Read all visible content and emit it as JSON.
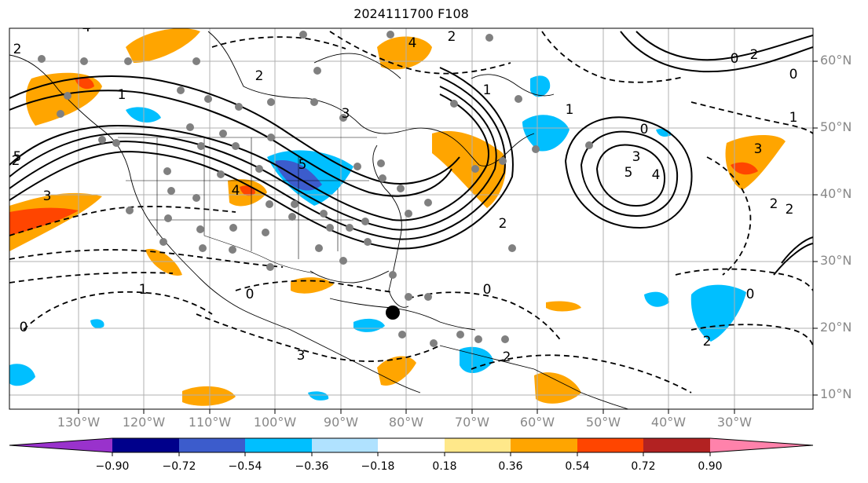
{
  "title": "2024111700 F108",
  "lat_labels": [
    "60°N",
    "50°N",
    "40°N",
    "30°N",
    "20°N",
    "10°N"
  ],
  "lon_labels": [
    "130°W",
    "120°W",
    "110°W",
    "100°W",
    "90°W",
    "80°W",
    "70°W",
    "60°W",
    "50°W",
    "40°W",
    "30°W"
  ],
  "colorbar": {
    "labels": [
      "−0.90",
      "−0.72",
      "−0.54",
      "−0.36",
      "−0.18",
      "0.18",
      "0.36",
      "0.54",
      "0.72",
      "0.90"
    ],
    "colors": [
      "#9932cc",
      "#00008b",
      "#3c5ccc",
      "#00bfff",
      "#b0e2ff",
      "#ffffff",
      "#ffe88a",
      "#ffa500",
      "#ff4500",
      "#b22222",
      "#ff82ab"
    ]
  },
  "contour_labels": [
    "2",
    "4",
    "1",
    "2",
    "3",
    "5",
    "4",
    "3",
    "2",
    "4",
    "2",
    "1",
    "0",
    "3",
    "5",
    "4",
    "3",
    "1",
    "2",
    "0",
    "2",
    "3",
    "0",
    "1",
    "2",
    "0",
    "2",
    "1",
    "0",
    "3",
    "0",
    "2",
    "0",
    "5",
    "2"
  ],
  "marker": {
    "lat": 22.5,
    "lon": -81.0
  }
}
